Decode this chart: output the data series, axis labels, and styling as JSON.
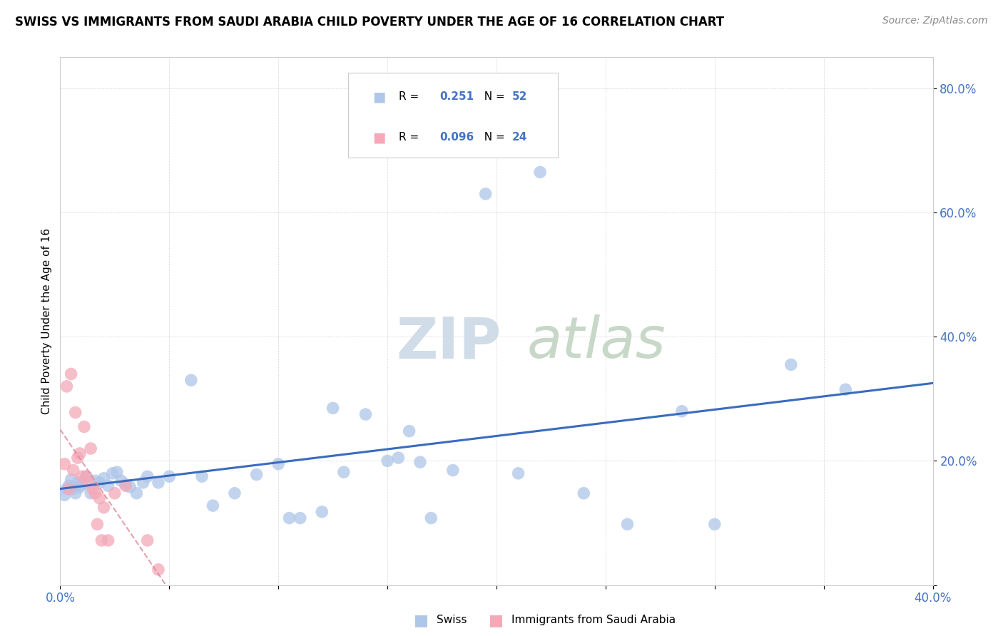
{
  "title": "SWISS VS IMMIGRANTS FROM SAUDI ARABIA CHILD POVERTY UNDER THE AGE OF 16 CORRELATION CHART",
  "source": "Source: ZipAtlas.com",
  "ylabel": "Child Poverty Under the Age of 16",
  "xlim": [
    0.0,
    0.4
  ],
  "ylim": [
    0.0,
    0.85
  ],
  "xticks": [
    0.0,
    0.05,
    0.1,
    0.15,
    0.2,
    0.25,
    0.3,
    0.35,
    0.4
  ],
  "yticks": [
    0.0,
    0.2,
    0.4,
    0.6,
    0.8
  ],
  "xtick_labels": [
    "0.0%",
    "",
    "",
    "",
    "",
    "",
    "",
    "",
    "40.0%"
  ],
  "ytick_labels": [
    "",
    "20.0%",
    "40.0%",
    "60.0%",
    "80.0%"
  ],
  "swiss_R": "0.251",
  "swiss_N": "52",
  "immig_R": "0.096",
  "immig_N": "24",
  "swiss_color": "#aec6e8",
  "immig_color": "#f4a8b8",
  "swiss_line_color": "#3a6bbf",
  "immig_line_color": "#e08898",
  "swiss_x": [
    0.002,
    0.003,
    0.004,
    0.005,
    0.006,
    0.007,
    0.008,
    0.009,
    0.01,
    0.012,
    0.014,
    0.016,
    0.018,
    0.02,
    0.022,
    0.024,
    0.026,
    0.028,
    0.03,
    0.032,
    0.035,
    0.038,
    0.04,
    0.045,
    0.05,
    0.06,
    0.065,
    0.07,
    0.08,
    0.09,
    0.1,
    0.105,
    0.11,
    0.12,
    0.125,
    0.13,
    0.14,
    0.15,
    0.155,
    0.16,
    0.165,
    0.17,
    0.18,
    0.195,
    0.21,
    0.22,
    0.24,
    0.26,
    0.285,
    0.3,
    0.335,
    0.36
  ],
  "swiss_y": [
    0.145,
    0.155,
    0.16,
    0.17,
    0.155,
    0.148,
    0.165,
    0.158,
    0.162,
    0.175,
    0.148,
    0.168,
    0.165,
    0.172,
    0.16,
    0.18,
    0.182,
    0.168,
    0.162,
    0.158,
    0.148,
    0.165,
    0.175,
    0.165,
    0.175,
    0.33,
    0.175,
    0.128,
    0.148,
    0.178,
    0.195,
    0.108,
    0.108,
    0.118,
    0.285,
    0.182,
    0.275,
    0.2,
    0.205,
    0.248,
    0.198,
    0.108,
    0.185,
    0.63,
    0.18,
    0.665,
    0.148,
    0.098,
    0.28,
    0.098,
    0.355,
    0.315
  ],
  "immig_x": [
    0.002,
    0.003,
    0.004,
    0.005,
    0.006,
    0.007,
    0.008,
    0.009,
    0.01,
    0.011,
    0.012,
    0.013,
    0.014,
    0.015,
    0.016,
    0.017,
    0.018,
    0.019,
    0.02,
    0.022,
    0.025,
    0.03,
    0.04,
    0.045
  ],
  "immig_y": [
    0.195,
    0.32,
    0.155,
    0.34,
    0.185,
    0.278,
    0.205,
    0.212,
    0.175,
    0.255,
    0.175,
    0.165,
    0.22,
    0.155,
    0.148,
    0.098,
    0.14,
    0.072,
    0.125,
    0.072,
    0.148,
    0.16,
    0.072,
    0.025
  ]
}
